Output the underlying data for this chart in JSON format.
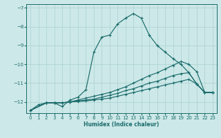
{
  "xlabel": "Humidex (Indice chaleur)",
  "bg_color": "#cde8e8",
  "grid_color": "#afd4d4",
  "line_color": "#1a6b6b",
  "xlim": [
    -0.5,
    23.5
  ],
  "ylim": [
    -12.6,
    -6.8
  ],
  "yticks": [
    -12,
    -11,
    -10,
    -9,
    -8,
    -7
  ],
  "xticks": [
    0,
    1,
    2,
    3,
    4,
    5,
    6,
    7,
    8,
    9,
    10,
    11,
    12,
    13,
    14,
    15,
    16,
    17,
    18,
    19,
    20,
    21,
    22,
    23
  ],
  "main_x": [
    0,
    1,
    2,
    3,
    4,
    5,
    6,
    7,
    8,
    9,
    10,
    11,
    12,
    13,
    14,
    15,
    16,
    17,
    18,
    19,
    20,
    21,
    22,
    23
  ],
  "main_y": [
    -12.45,
    -12.15,
    -12.05,
    -12.05,
    -12.25,
    -11.9,
    -11.75,
    -11.35,
    -9.35,
    -8.55,
    -8.45,
    -7.85,
    -7.55,
    -7.3,
    -7.55,
    -8.45,
    -9.0,
    -9.35,
    -9.7,
    -10.0,
    -10.45,
    -11.05,
    -11.5,
    -11.5
  ],
  "line2_x": [
    0,
    2,
    3,
    4,
    5,
    6,
    7,
    8,
    9,
    10,
    11,
    12,
    13,
    14,
    15,
    16,
    17,
    18,
    19,
    20,
    21,
    22,
    23
  ],
  "line2_y": [
    -12.45,
    -12.05,
    -12.05,
    -12.05,
    -12.0,
    -11.9,
    -11.8,
    -11.7,
    -11.6,
    -11.5,
    -11.35,
    -11.2,
    -11.0,
    -10.8,
    -10.6,
    -10.45,
    -10.25,
    -10.05,
    -9.85,
    -10.0,
    -10.4,
    -11.5,
    -11.5
  ],
  "line3_x": [
    0,
    2,
    3,
    4,
    5,
    6,
    7,
    8,
    9,
    10,
    11,
    12,
    13,
    14,
    15,
    16,
    17,
    18,
    19,
    20,
    21,
    22,
    23
  ],
  "line3_y": [
    -12.45,
    -12.05,
    -12.05,
    -12.05,
    -12.0,
    -11.95,
    -11.9,
    -11.85,
    -11.75,
    -11.65,
    -11.55,
    -11.4,
    -11.3,
    -11.15,
    -11.0,
    -10.9,
    -10.75,
    -10.6,
    -10.5,
    -10.45,
    -11.05,
    -11.5,
    -11.5
  ],
  "line4_x": [
    0,
    2,
    3,
    4,
    5,
    6,
    7,
    8,
    9,
    10,
    11,
    12,
    13,
    14,
    15,
    16,
    17,
    18,
    19,
    20,
    21,
    22,
    23
  ],
  "line4_y": [
    -12.45,
    -12.05,
    -12.05,
    -12.05,
    -12.0,
    -11.98,
    -11.95,
    -11.9,
    -11.85,
    -11.8,
    -11.7,
    -11.6,
    -11.5,
    -11.4,
    -11.3,
    -11.2,
    -11.1,
    -11.0,
    -10.9,
    -10.8,
    -11.05,
    -11.5,
    -11.5
  ]
}
